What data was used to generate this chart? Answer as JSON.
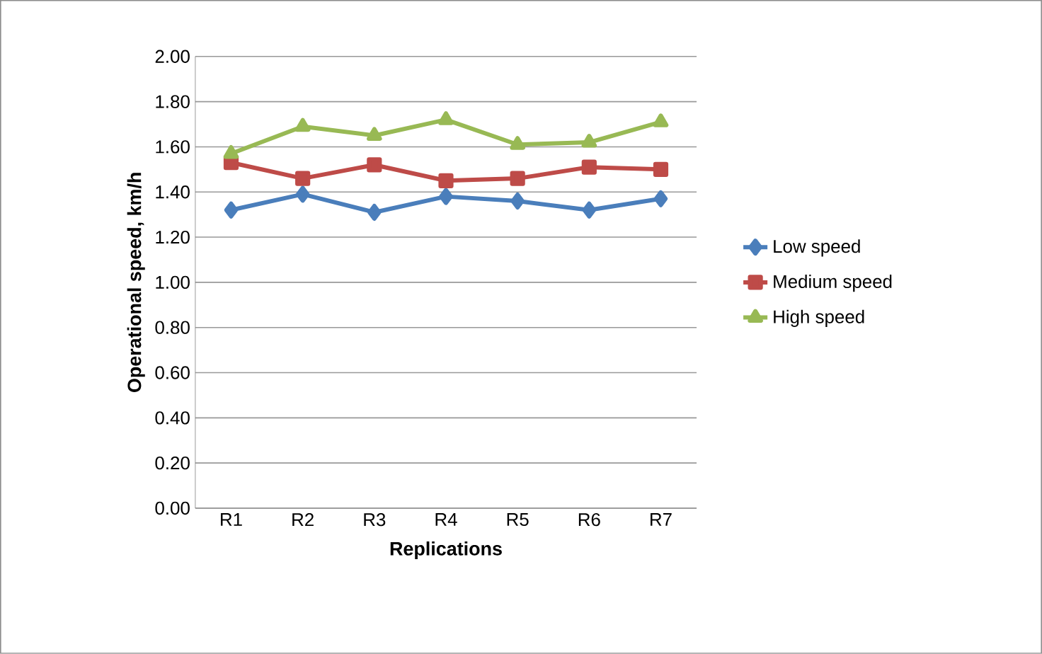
{
  "chart_data": {
    "type": "line",
    "xlabel": "Replications",
    "ylabel": "Operational speed, km/h",
    "categories": [
      "R1",
      "R2",
      "R3",
      "R4",
      "R5",
      "R6",
      "R7"
    ],
    "series": [
      {
        "name": "Low speed",
        "color": "#4a7ebb",
        "marker": "diamond",
        "values": [
          1.32,
          1.39,
          1.31,
          1.38,
          1.36,
          1.32,
          1.37
        ]
      },
      {
        "name": "Medium speed",
        "color": "#be4b48",
        "marker": "square",
        "values": [
          1.53,
          1.46,
          1.52,
          1.45,
          1.46,
          1.51,
          1.5
        ]
      },
      {
        "name": "High speed",
        "color": "#98b954",
        "marker": "triangle",
        "values": [
          1.57,
          1.69,
          1.65,
          1.72,
          1.61,
          1.62,
          1.71
        ]
      }
    ],
    "ylim": [
      0,
      2
    ],
    "yticks": [
      {
        "value": 0,
        "label": "0.00"
      },
      {
        "value": 0.2,
        "label": "0.20"
      },
      {
        "value": 0.4,
        "label": "0.40"
      },
      {
        "value": 0.6,
        "label": "0.60"
      },
      {
        "value": 0.8,
        "label": "0.80"
      },
      {
        "value": 1.0,
        "label": "1.00"
      },
      {
        "value": 1.2,
        "label": "1.20"
      },
      {
        "value": 1.4,
        "label": "1.40"
      },
      {
        "value": 1.6,
        "label": "1.60"
      },
      {
        "value": 1.8,
        "label": "1.80"
      },
      {
        "value": 2.0,
        "label": "2.00"
      }
    ],
    "grid": "y",
    "legend": "right"
  }
}
